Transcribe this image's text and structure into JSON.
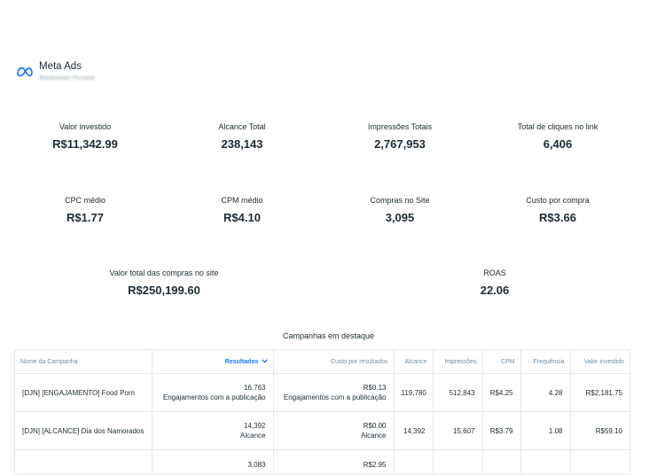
{
  "header": {
    "title": "Meta Ads",
    "subtitle": "Bombonato Pizzaria"
  },
  "metrics": [
    {
      "label": "Valor investido",
      "value": "R$11,342.99"
    },
    {
      "label": "Alcance Total",
      "value": "238,143"
    },
    {
      "label": "Impressões Totais",
      "value": "2,767,953"
    },
    {
      "label": "Total de cliques no link",
      "value": "6,406"
    },
    {
      "label": "CPC médio",
      "value": "R$1.77"
    },
    {
      "label": "CPM médio",
      "value": "R$4.10"
    },
    {
      "label": "Compras no Site",
      "value": "3,095"
    },
    {
      "label": "Custo por compra",
      "value": "R$3.66"
    },
    {
      "label": "Valor total das compras no site",
      "value": "R$250,199.60"
    },
    {
      "label": "ROAS",
      "value": "22.06"
    }
  ],
  "campaigns": {
    "title": "Campanhas em destaque",
    "columns": [
      "Nome da Campanha",
      "Resultados",
      "Custo por resultados",
      "Alcance",
      "Impressões",
      "CPM",
      "Frequência",
      "Valor investido"
    ],
    "rows": [
      {
        "name": "[DJN] [ENGAJAMENTO] Food Porn",
        "result": "16,763",
        "result_type": "Engajamentos com a publicação",
        "cost": "R$0.13",
        "cost_type": "Engajamentos com a publicação",
        "reach": "119,780",
        "impressions": "512,843",
        "cpm": "R$4.25",
        "frequency": "4.28",
        "spent": "R$2,181.75"
      },
      {
        "name": "[DJN] [ALCANCE] Dia dos Namorados",
        "result": "14,392",
        "result_type": "Alcance",
        "cost": "R$0.00",
        "cost_type": "Alcance",
        "reach": "14,392",
        "impressions": "15,607",
        "cpm": "R$3.79",
        "frequency": "1.08",
        "spent": "R$59.10"
      },
      {
        "name": "",
        "result": "3,083",
        "result_type": "",
        "cost": "R$2.95",
        "cost_type": "",
        "reach": "",
        "impressions": "",
        "cpm": "",
        "frequency": "",
        "spent": ""
      }
    ]
  },
  "colors": {
    "accent": "#1877f2",
    "text": "#1c2b33",
    "header_text": "#6b8fa6",
    "border": "#e4e8ec"
  },
  "icons": {
    "logo": "meta-logo-icon",
    "sort": "chevron-down-icon"
  }
}
